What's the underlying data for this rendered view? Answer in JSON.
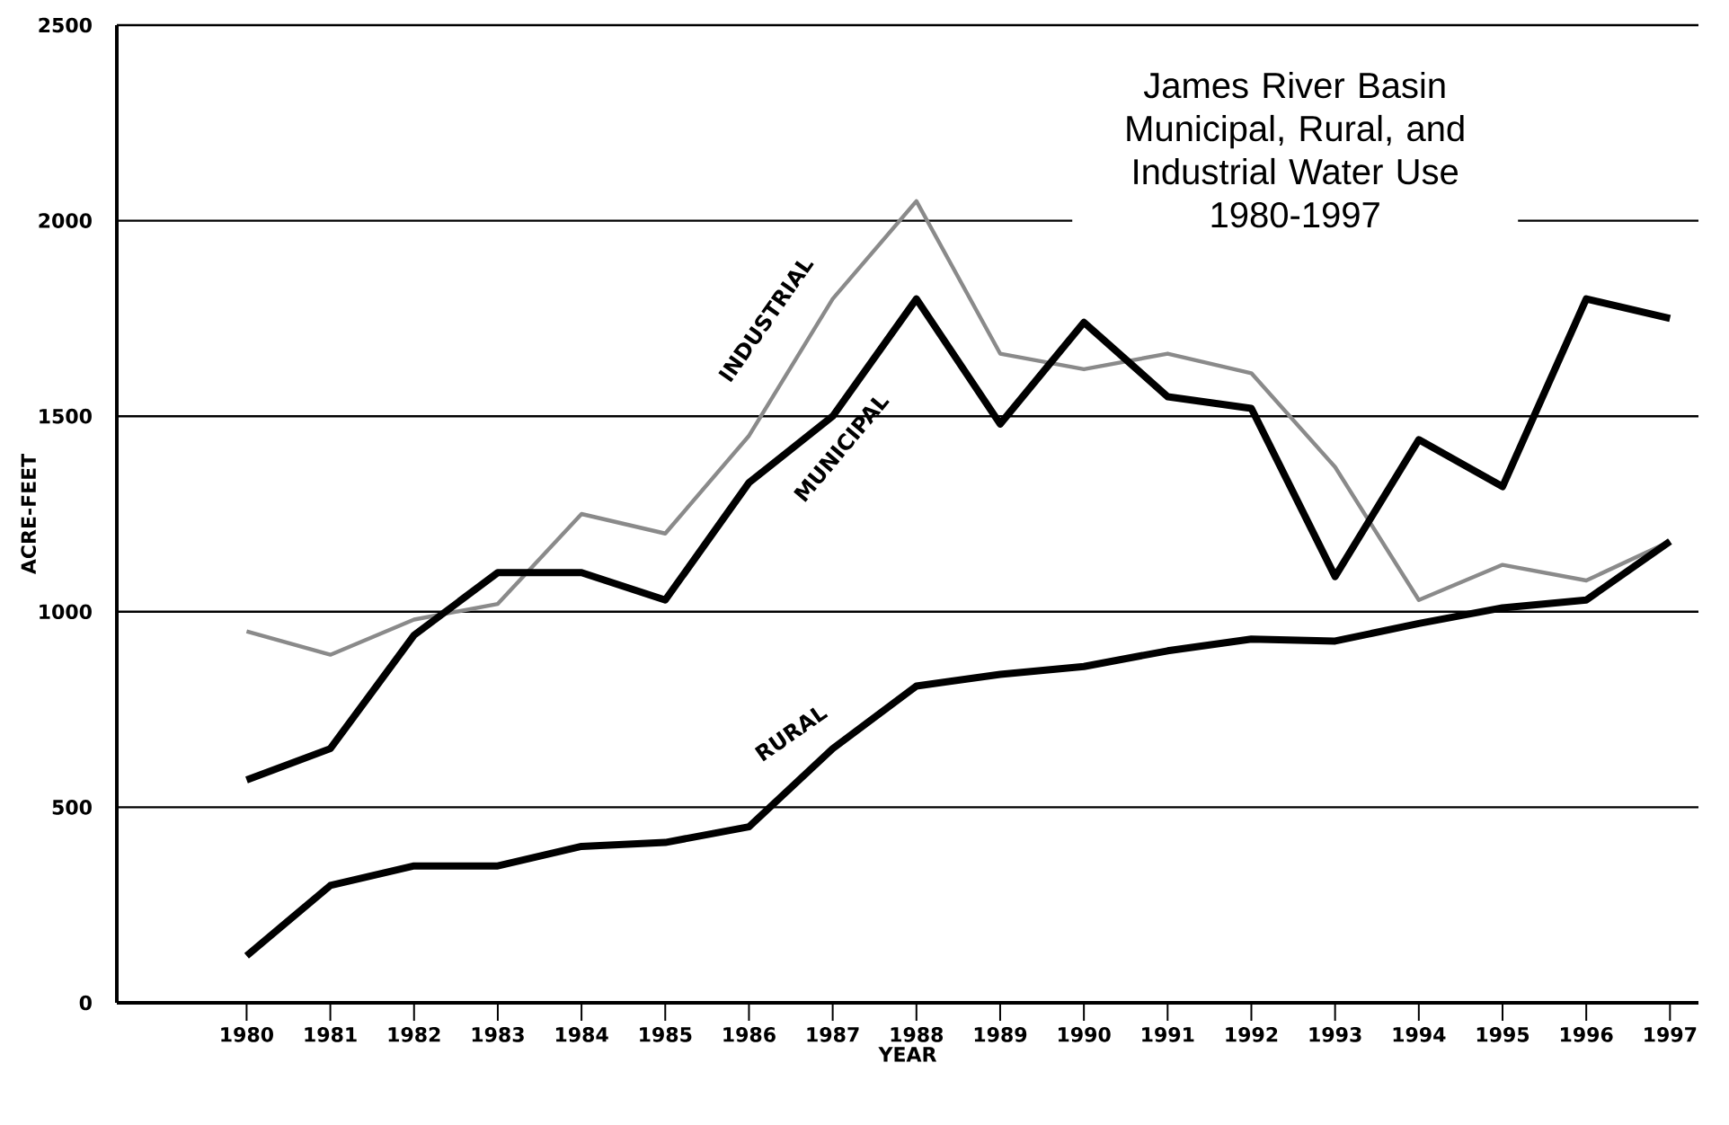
{
  "chart_data": {
    "type": "line",
    "title": "James River Basin Municipal, Rural, and Industrial Water Use",
    "subtitle": "1980-1997",
    "xlabel": "YEAR",
    "ylabel": "ACRE-FEET",
    "categories": [
      "1980",
      "1981",
      "1982",
      "1983",
      "1984",
      "1985",
      "1986",
      "1987",
      "1988",
      "1989",
      "1990",
      "1991",
      "1992",
      "1993",
      "1994",
      "1995",
      "1996",
      "1997"
    ],
    "ylim": [
      0,
      2500
    ],
    "yticks": [
      0,
      500,
      1000,
      1500,
      2000,
      2500
    ],
    "grid": "y",
    "legend": false,
    "marker": "none",
    "line_style": "solid",
    "series": [
      {
        "name": "INDUSTRIAL",
        "color": "#8a8a8a",
        "values": [
          950,
          890,
          980,
          1020,
          1250,
          1200,
          1450,
          1800,
          2050,
          1660,
          1620,
          1660,
          1610,
          1370,
          1030,
          1120,
          1080,
          1180
        ]
      },
      {
        "name": "MUNICIPAL",
        "color": "#000000",
        "values": [
          570,
          650,
          940,
          1100,
          1100,
          1030,
          1330,
          1500,
          1800,
          1480,
          1740,
          1550,
          1520,
          1090,
          1440,
          1320,
          1800,
          1750
        ]
      },
      {
        "name": "RURAL",
        "color": "#000000",
        "values": [
          120,
          300,
          350,
          350,
          400,
          410,
          450,
          650,
          810,
          840,
          860,
          900,
          930,
          925,
          970,
          1010,
          1030,
          1180
        ]
      }
    ]
  }
}
